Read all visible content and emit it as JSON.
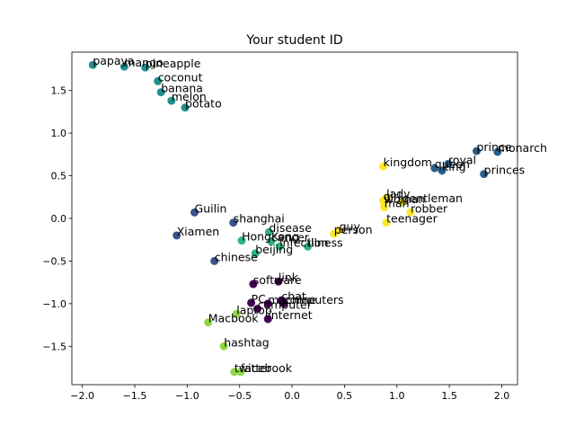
{
  "chart_data": {
    "type": "scatter",
    "title": "Your student ID",
    "xlabel": "",
    "ylabel": "",
    "xlim": [
      -2.1,
      2.15
    ],
    "ylim": [
      -1.95,
      1.95
    ],
    "xticks": [
      -2.0,
      -1.5,
      -1.0,
      -0.5,
      0.0,
      0.5,
      1.0,
      1.5,
      2.0
    ],
    "yticks": [
      -1.5,
      -1.0,
      -0.5,
      0.0,
      0.5,
      1.0,
      1.5
    ],
    "xtick_labels": [
      "−2.0",
      "−1.5",
      "−1.0",
      "−0.5",
      "0.0",
      "0.5",
      "1.0",
      "1.5",
      "2.0"
    ],
    "ytick_labels": [
      "−1.5",
      "−1.0",
      "−0.5",
      "0.0",
      "0.5",
      "1.0",
      "1.5"
    ],
    "grid": false,
    "colors": {
      "c0": "#440154",
      "c1": "#3b528b",
      "c2": "#21918c",
      "c3": "#5ec962",
      "c4": "#fde725",
      "c_royal": "#2c5f8a",
      "c_mid": "#2fb47c",
      "c_tech": "#8fd744"
    },
    "points": [
      {
        "label": "papaya",
        "x": -1.9,
        "y": 1.8,
        "color": "#21918c"
      },
      {
        "label": "mango",
        "x": -1.6,
        "y": 1.78,
        "color": "#21918c"
      },
      {
        "label": "pineapple",
        "x": -1.4,
        "y": 1.77,
        "color": "#21918c"
      },
      {
        "label": "coconut",
        "x": -1.28,
        "y": 1.61,
        "color": "#21918c"
      },
      {
        "label": "banana",
        "x": -1.25,
        "y": 1.48,
        "color": "#21918c"
      },
      {
        "label": "melon",
        "x": -1.15,
        "y": 1.38,
        "color": "#21918c"
      },
      {
        "label": "potato",
        "x": -1.02,
        "y": 1.3,
        "color": "#21918c"
      },
      {
        "label": "kingdom",
        "x": 0.87,
        "y": 0.61,
        "color": "#fde725"
      },
      {
        "label": "prince",
        "x": 1.76,
        "y": 0.79,
        "color": "#2c5f8a"
      },
      {
        "label": "monarch",
        "x": 1.96,
        "y": 0.78,
        "color": "#2c5f8a"
      },
      {
        "label": "royal",
        "x": 1.49,
        "y": 0.64,
        "color": "#2c5f8a"
      },
      {
        "label": "queen",
        "x": 1.36,
        "y": 0.59,
        "color": "#2c5f8a"
      },
      {
        "label": "king",
        "x": 1.43,
        "y": 0.56,
        "color": "#2c5f8a"
      },
      {
        "label": "princes",
        "x": 1.83,
        "y": 0.52,
        "color": "#2c5f8a"
      },
      {
        "label": "lady",
        "x": 0.9,
        "y": 0.24,
        "color": "#fde725"
      },
      {
        "label": "girl",
        "x": 0.87,
        "y": 0.21,
        "color": "#fde725"
      },
      {
        "label": "gentleman",
        "x": 1.05,
        "y": 0.19,
        "color": "#fde725"
      },
      {
        "label": "woman",
        "x": 0.88,
        "y": 0.18,
        "color": "#fde725"
      },
      {
        "label": "man",
        "x": 0.88,
        "y": 0.13,
        "color": "#fde725"
      },
      {
        "label": "robber",
        "x": 1.13,
        "y": 0.07,
        "color": "#fde725"
      },
      {
        "label": "teenager",
        "x": 0.9,
        "y": -0.05,
        "color": "#fde725"
      },
      {
        "label": "guy",
        "x": 0.45,
        "y": -0.14,
        "color": "#fde725"
      },
      {
        "label": "person",
        "x": 0.4,
        "y": -0.18,
        "color": "#fde725"
      },
      {
        "label": "Guilin",
        "x": -0.93,
        "y": 0.07,
        "color": "#3b528b"
      },
      {
        "label": "shanghai",
        "x": -0.56,
        "y": -0.05,
        "color": "#3b528b"
      },
      {
        "label": "Xiamen",
        "x": -1.1,
        "y": -0.2,
        "color": "#3b528b"
      },
      {
        "label": "chinese",
        "x": -0.74,
        "y": -0.5,
        "color": "#3b528b"
      },
      {
        "label": "disease",
        "x": -0.22,
        "y": -0.16,
        "color": "#2fb47c"
      },
      {
        "label": "HongKong",
        "x": -0.48,
        "y": -0.26,
        "color": "#2fb47c"
      },
      {
        "label": "cancer",
        "x": -0.2,
        "y": -0.27,
        "color": "#2fb47c"
      },
      {
        "label": "infection",
        "x": -0.12,
        "y": -0.33,
        "color": "#2fb47c"
      },
      {
        "label": "illness",
        "x": 0.15,
        "y": -0.33,
        "color": "#2fb47c"
      },
      {
        "label": "beijing",
        "x": -0.35,
        "y": -0.41,
        "color": "#2fb47c"
      },
      {
        "label": "software",
        "x": -0.37,
        "y": -0.77,
        "color": "#440154"
      },
      {
        "label": "link",
        "x": -0.13,
        "y": -0.74,
        "color": "#440154"
      },
      {
        "label": "chat",
        "x": -0.1,
        "y": -0.96,
        "color": "#440154"
      },
      {
        "label": "PC",
        "x": -0.39,
        "y": -0.99,
        "color": "#440154"
      },
      {
        "label": "machine",
        "x": -0.23,
        "y": -1.0,
        "color": "#440154"
      },
      {
        "label": "computers",
        "x": -0.08,
        "y": -1.0,
        "color": "#440154"
      },
      {
        "label": "computer",
        "x": -0.33,
        "y": -1.06,
        "color": "#440154"
      },
      {
        "label": "laptop",
        "x": -0.53,
        "y": -1.12,
        "color": "#8fd744"
      },
      {
        "label": "internet",
        "x": -0.23,
        "y": -1.18,
        "color": "#440154"
      },
      {
        "label": "Macbook",
        "x": -0.8,
        "y": -1.22,
        "color": "#8fd744"
      },
      {
        "label": "hashtag",
        "x": -0.65,
        "y": -1.5,
        "color": "#8fd744"
      },
      {
        "label": "twitter",
        "x": -0.55,
        "y": -1.8,
        "color": "#8fd744"
      },
      {
        "label": "facebook",
        "x": -0.49,
        "y": -1.8,
        "color": "#8fd744"
      }
    ]
  }
}
